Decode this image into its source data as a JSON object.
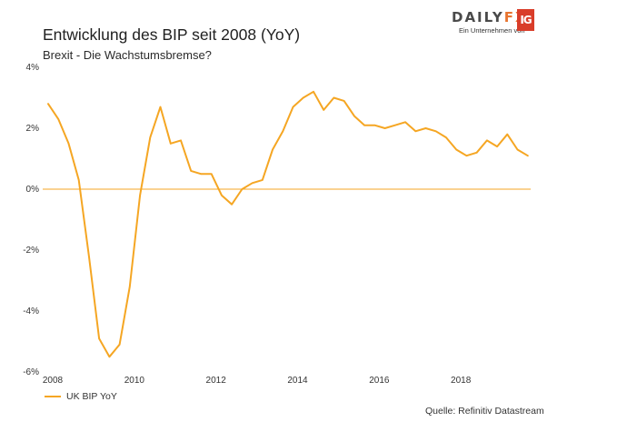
{
  "header": {
    "title": "Entwicklung des BIP seit 2008 (YoY)",
    "subtitle": "Brexit - Die Wachstumsbremse?"
  },
  "logo": {
    "word_main": "DAILY",
    "word_fx": "FX",
    "sub": "Ein Unternehmen von",
    "badge": "IG"
  },
  "source": "Quelle: Refinitiv Datastream",
  "colors": {
    "series": "#f5a623",
    "zero_line": "#f5a623"
  },
  "chart_data": {
    "type": "line",
    "title": "Entwicklung des BIP seit 2008 (YoY)",
    "subtitle": "Brexit - Die Wachstumsbremse?",
    "xlabel": "",
    "ylabel": "",
    "xlim": [
      2008.0,
      2020.0
    ],
    "ylim": [
      -6,
      4
    ],
    "x_ticks": [
      2008,
      2010,
      2012,
      2014,
      2016,
      2018
    ],
    "x_tick_labels": [
      "2008",
      "2010",
      "2012",
      "2014",
      "2016",
      "2018"
    ],
    "y_ticks": [
      4,
      2,
      0,
      -2,
      -4,
      -6
    ],
    "y_tick_labels": [
      "4%",
      "2%",
      "0%",
      "-2%",
      "-4%",
      "-6%"
    ],
    "grid": false,
    "reference_line": 0,
    "legend": {
      "position": "bottom-left",
      "entries": [
        "UK BIP YoY"
      ]
    },
    "series": [
      {
        "name": "UK BIP YoY",
        "x": [
          2008.0,
          2008.25,
          2008.5,
          2008.75,
          2009.0,
          2009.25,
          2009.5,
          2009.75,
          2010.0,
          2010.25,
          2010.5,
          2010.75,
          2011.0,
          2011.25,
          2011.5,
          2011.75,
          2012.0,
          2012.25,
          2012.5,
          2012.75,
          2013.0,
          2013.25,
          2013.5,
          2013.75,
          2014.0,
          2014.25,
          2014.5,
          2014.75,
          2015.0,
          2015.25,
          2015.5,
          2015.75,
          2016.0,
          2016.25,
          2016.5,
          2016.75,
          2017.0,
          2017.25,
          2017.5,
          2017.75,
          2018.0,
          2018.25,
          2018.5,
          2018.75,
          2019.0,
          2019.25,
          2019.5,
          2019.75
        ],
        "values": [
          2.8,
          2.3,
          1.5,
          0.3,
          -2.2,
          -4.9,
          -5.5,
          -5.1,
          -3.2,
          -0.2,
          1.7,
          2.7,
          1.5,
          1.6,
          0.6,
          0.5,
          0.5,
          -0.2,
          -0.5,
          0.0,
          0.2,
          0.3,
          1.3,
          1.9,
          2.7,
          3.0,
          3.2,
          2.6,
          3.0,
          2.9,
          2.4,
          2.1,
          2.1,
          2.0,
          2.1,
          2.2,
          1.9,
          2.0,
          1.9,
          1.7,
          1.3,
          1.1,
          1.2,
          1.6,
          1.4,
          1.8,
          1.3,
          1.1
        ]
      }
    ]
  }
}
